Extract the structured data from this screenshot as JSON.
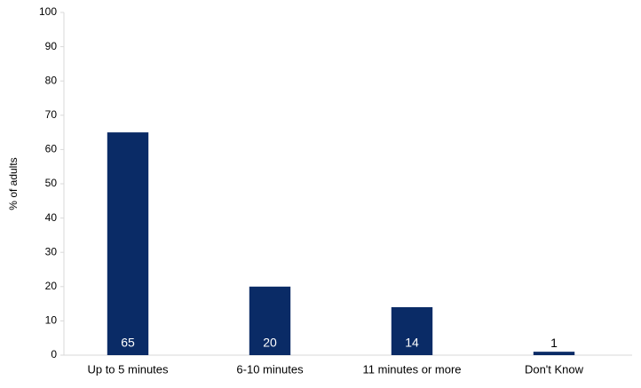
{
  "chart_data": {
    "type": "bar",
    "y_label": "% of adults",
    "categories": [
      "Up to 5 minutes",
      "6-10 minutes",
      "11 minutes or more",
      "Don't Know"
    ],
    "values": [
      65,
      20,
      14,
      1
    ],
    "color": "#0a2b66",
    "ylim": [
      0,
      100
    ],
    "yticks": [
      0,
      10,
      20,
      30,
      40,
      50,
      60,
      70,
      80,
      90,
      100
    ],
    "grid": false
  }
}
